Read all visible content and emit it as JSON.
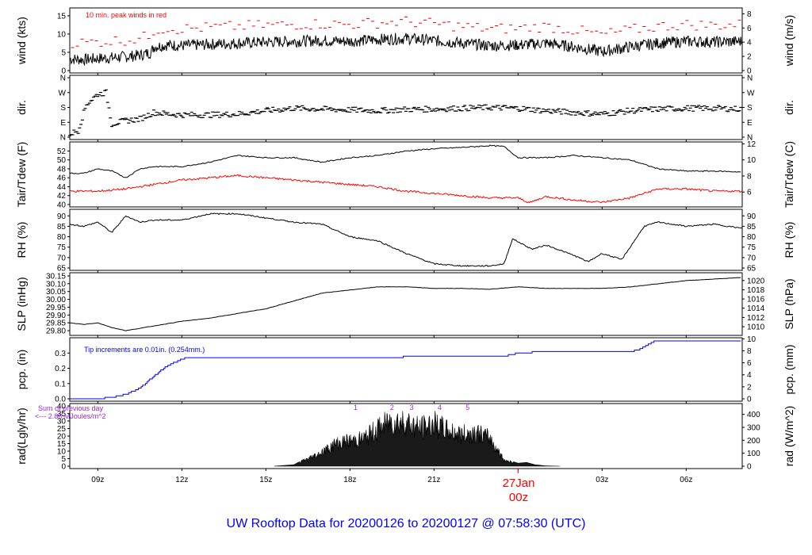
{
  "title": "UW Rooftop Data for 20200126  to  20200127 @ 07:58:30  (UTC)",
  "colors": {
    "frame": "#000000",
    "red": "#ff0000",
    "blue": "#0000ff",
    "purple": "#a020f0",
    "title": "#0000ff"
  },
  "x_axis": {
    "ticks": [
      "09z",
      "12z",
      "15z",
      "18z",
      "21z",
      "00z",
      "03z",
      "06z"
    ],
    "tick_hours": [
      9,
      12,
      15,
      18,
      21,
      24,
      27,
      30
    ],
    "range_hours": [
      8.0,
      32.0
    ],
    "date_label": "27Jan",
    "date_sub": "00z"
  },
  "panels": {
    "wind": {
      "ylabel_left": "wind (kts)",
      "ylabel_right": "wind (m/s)",
      "left_ticks": [
        "0",
        "5",
        "10",
        "15"
      ],
      "left_range": [
        0,
        16.5
      ],
      "right_ticks": [
        "0",
        "2",
        "4",
        "6",
        "8"
      ],
      "note": "10 min. peak winds in red",
      "series": [
        {
          "name": "wind",
          "color": "black",
          "points": [
            [
              8.0,
              3.2
            ],
            [
              8.5,
              3.0
            ],
            [
              9.0,
              3.3
            ],
            [
              9.5,
              3.5
            ],
            [
              10.0,
              3.8
            ],
            [
              10.5,
              4.2
            ],
            [
              10.9,
              5.0
            ],
            [
              11.0,
              6.5
            ],
            [
              11.5,
              7.0
            ],
            [
              12.0,
              6.8
            ],
            [
              13.0,
              7.2
            ],
            [
              14.0,
              7.5
            ],
            [
              15.0,
              7.8
            ],
            [
              16.0,
              8.0
            ],
            [
              17.0,
              8.2
            ],
            [
              18.0,
              8.0
            ],
            [
              19.0,
              8.5
            ],
            [
              20.0,
              8.8
            ],
            [
              21.0,
              8.2
            ],
            [
              22.0,
              7.5
            ],
            [
              23.0,
              6.8
            ],
            [
              24.0,
              7.0
            ],
            [
              25.0,
              7.5
            ],
            [
              26.0,
              6.5
            ],
            [
              27.0,
              5.2
            ],
            [
              28.0,
              6.5
            ],
            [
              29.0,
              7.5
            ],
            [
              30.0,
              8.0
            ],
            [
              31.0,
              7.8
            ],
            [
              32.0,
              8.0
            ]
          ]
        }
      ],
      "peaks_approx": {
        "color": "red",
        "offset_kts": 4.0
      }
    },
    "direction": {
      "ylabel_left": "dir.",
      "ylabel_right": "dir.",
      "ticks": [
        "N",
        "E",
        "S",
        "W",
        "N"
      ],
      "range_deg": [
        0,
        360
      ],
      "series": [
        {
          "name": "direction",
          "color": "black",
          "points": [
            [
              8.0,
              20
            ],
            [
              8.3,
              40
            ],
            [
              8.6,
              200
            ],
            [
              9.0,
              260
            ],
            [
              9.3,
              270
            ],
            [
              9.5,
              80
            ],
            [
              10.0,
              100
            ],
            [
              10.5,
              110
            ],
            [
              11.0,
              150
            ],
            [
              11.5,
              140
            ],
            [
              12.0,
              135
            ],
            [
              13.0,
              135
            ],
            [
              14.0,
              140
            ],
            [
              15.0,
              160
            ],
            [
              16.0,
              175
            ],
            [
              17.0,
              170
            ],
            [
              18.0,
              165
            ],
            [
              19.0,
              160
            ],
            [
              20.0,
              168
            ],
            [
              21.0,
              170
            ],
            [
              22.0,
              175
            ],
            [
              23.0,
              180
            ],
            [
              24.0,
              175
            ],
            [
              25.0,
              160
            ],
            [
              26.0,
              150
            ],
            [
              27.0,
              140
            ],
            [
              28.0,
              160
            ],
            [
              29.0,
              170
            ],
            [
              30.0,
              175
            ],
            [
              31.0,
              175
            ],
            [
              32.0,
              170
            ]
          ]
        }
      ]
    },
    "temp": {
      "ylabel_left": "Tair/Tdew (F)",
      "ylabel_right": "Tair/Tdew (C)",
      "left_ticks": [
        "40",
        "42",
        "44",
        "46",
        "48",
        "50",
        "52"
      ],
      "left_range": [
        40,
        53.5
      ],
      "right_ticks": [
        "6",
        "8",
        "10",
        "12"
      ],
      "series": [
        {
          "name": "Tair",
          "color": "black",
          "points": [
            [
              8.0,
              47.0
            ],
            [
              8.5,
              47.0
            ],
            [
              9.0,
              48.0
            ],
            [
              9.5,
              47.5
            ],
            [
              10.0,
              46.0
            ],
            [
              10.5,
              48.0
            ],
            [
              11.0,
              48.5
            ],
            [
              12.0,
              48.5
            ],
            [
              13.0,
              49.5
            ],
            [
              14.0,
              51.0
            ],
            [
              15.0,
              50.5
            ],
            [
              16.0,
              50.5
            ],
            [
              17.0,
              49.5
            ],
            [
              18.0,
              50.5
            ],
            [
              19.0,
              51.0
            ],
            [
              20.0,
              52.0
            ],
            [
              21.0,
              52.5
            ],
            [
              22.0,
              52.8
            ],
            [
              23.0,
              53.2
            ],
            [
              23.5,
              53.0
            ],
            [
              24.0,
              50.5
            ],
            [
              25.0,
              50.5
            ],
            [
              26.0,
              51.0
            ],
            [
              27.0,
              50.5
            ],
            [
              28.0,
              50.0
            ],
            [
              29.0,
              48.0
            ],
            [
              30.0,
              47.5
            ],
            [
              31.0,
              47.5
            ],
            [
              32.0,
              47.3
            ]
          ]
        },
        {
          "name": "Tdew",
          "color": "red",
          "points": [
            [
              8.0,
              43.0
            ],
            [
              9.0,
              43.0
            ],
            [
              10.0,
              43.5
            ],
            [
              11.0,
              44.5
            ],
            [
              12.0,
              45.5
            ],
            [
              13.0,
              46.0
            ],
            [
              14.0,
              46.5
            ],
            [
              15.0,
              46.0
            ],
            [
              16.0,
              45.5
            ],
            [
              17.0,
              45.0
            ],
            [
              18.0,
              44.5
            ],
            [
              19.0,
              44.0
            ],
            [
              20.0,
              43.0
            ],
            [
              21.0,
              42.5
            ],
            [
              22.0,
              42.0
            ],
            [
              23.0,
              41.5
            ],
            [
              24.0,
              41.5
            ],
            [
              24.4,
              40.4
            ],
            [
              25.0,
              41.8
            ],
            [
              26.0,
              41.0
            ],
            [
              27.0,
              40.5
            ],
            [
              28.0,
              41.5
            ],
            [
              29.0,
              43.5
            ],
            [
              30.0,
              43.5
            ],
            [
              31.0,
              43.0
            ],
            [
              32.0,
              43.0
            ]
          ]
        }
      ]
    },
    "rh": {
      "ylabel_left": "RH (%)",
      "ylabel_right": "RH (%)",
      "ticks": [
        "65",
        "70",
        "75",
        "80",
        "85",
        "90"
      ],
      "range": [
        65,
        92
      ],
      "series": [
        {
          "name": "RH",
          "color": "black",
          "points": [
            [
              8.0,
              86
            ],
            [
              8.5,
              85
            ],
            [
              9.0,
              87
            ],
            [
              9.5,
              82
            ],
            [
              10.0,
              90
            ],
            [
              10.5,
              87
            ],
            [
              11.0,
              88
            ],
            [
              12.0,
              88
            ],
            [
              13.0,
              91
            ],
            [
              14.0,
              91
            ],
            [
              15.0,
              89
            ],
            [
              16.0,
              87
            ],
            [
              17.0,
              86
            ],
            [
              18.0,
              80
            ],
            [
              19.0,
              78
            ],
            [
              20.0,
              72
            ],
            [
              21.0,
              67
            ],
            [
              22.0,
              66
            ],
            [
              23.0,
              66
            ],
            [
              23.5,
              67
            ],
            [
              23.8,
              79
            ],
            [
              24.5,
              74
            ],
            [
              25.0,
              76
            ],
            [
              26.0,
              71
            ],
            [
              26.5,
              68
            ],
            [
              27.0,
              72
            ],
            [
              27.7,
              69
            ],
            [
              28.0,
              75
            ],
            [
              28.5,
              85
            ],
            [
              29.0,
              87
            ],
            [
              30.0,
              85
            ],
            [
              31.0,
              86
            ],
            [
              32.0,
              84
            ]
          ]
        }
      ]
    },
    "slp": {
      "ylabel_left": "SLP (inHg)",
      "ylabel_right": "SLP (hPa)",
      "left_ticks": [
        "29.80",
        "29.85",
        "29.90",
        "29.95",
        "30.00",
        "30.05",
        "30.10",
        "30.15"
      ],
      "left_range": [
        29.785,
        30.155
      ],
      "right_ticks": [
        "1010",
        "1012",
        "1014",
        "1016",
        "1018",
        "1020"
      ],
      "series": [
        {
          "name": "SLP",
          "color": "black",
          "points": [
            [
              8.0,
              29.85
            ],
            [
              8.5,
              29.84
            ],
            [
              9.0,
              29.85
            ],
            [
              9.5,
              29.82
            ],
            [
              10.0,
              29.8
            ],
            [
              11.0,
              29.83
            ],
            [
              12.0,
              29.86
            ],
            [
              13.0,
              29.88
            ],
            [
              14.0,
              29.91
            ],
            [
              15.0,
              29.94
            ],
            [
              16.0,
              29.99
            ],
            [
              17.0,
              30.04
            ],
            [
              18.0,
              30.06
            ],
            [
              19.0,
              30.08
            ],
            [
              20.0,
              30.08
            ],
            [
              21.0,
              30.07
            ],
            [
              22.0,
              30.07
            ],
            [
              23.0,
              30.065
            ],
            [
              24.0,
              30.08
            ],
            [
              25.0,
              30.07
            ],
            [
              26.0,
              30.07
            ],
            [
              27.0,
              30.07
            ],
            [
              28.0,
              30.08
            ],
            [
              29.0,
              30.1
            ],
            [
              30.0,
              30.12
            ],
            [
              31.0,
              30.13
            ],
            [
              32.0,
              30.14
            ]
          ]
        }
      ]
    },
    "pcp": {
      "ylabel_left": "pcp. (in)",
      "ylabel_right": "pcp. (mm)",
      "left_ticks": [
        "0.0",
        "0.1",
        "0.2",
        "0.3"
      ],
      "left_range": [
        0,
        0.385
      ],
      "right_ticks": [
        "0",
        "2",
        "4",
        "6",
        "8",
        "10"
      ],
      "note": "Tip increments are 0.01in. (0.254mm.)",
      "series": [
        {
          "name": "precip",
          "color": "blue",
          "points": [
            [
              8.0,
              0.0
            ],
            [
              9.0,
              0.0
            ],
            [
              9.5,
              0.01
            ],
            [
              10.0,
              0.03
            ],
            [
              10.5,
              0.07
            ],
            [
              11.0,
              0.15
            ],
            [
              11.5,
              0.22
            ],
            [
              12.0,
              0.26
            ],
            [
              12.2,
              0.27
            ],
            [
              13.0,
              0.27
            ],
            [
              16.0,
              0.27
            ],
            [
              18.0,
              0.27
            ],
            [
              19.8,
              0.27
            ],
            [
              20.0,
              0.28
            ],
            [
              23.5,
              0.28
            ],
            [
              24.0,
              0.3
            ],
            [
              25.0,
              0.31
            ],
            [
              28.0,
              0.31
            ],
            [
              28.3,
              0.32
            ],
            [
              28.9,
              0.38
            ],
            [
              32.0,
              0.38
            ]
          ]
        }
      ]
    },
    "rad": {
      "ylabel_left": "rad(Lgly/hr)",
      "ylabel_right": "rad (W/m^2)",
      "left_ticks": [
        "0",
        "5",
        "10",
        "15",
        "20",
        "25",
        "30",
        "35",
        "40"
      ],
      "left_range": [
        0,
        40
      ],
      "right_ticks": [
        "0",
        "100",
        "200",
        "300",
        "400"
      ],
      "note_line1": "Sum of previous day",
      "note_line2": "<--- 2.88 MJoules/m^2",
      "hour_marks": [
        "1",
        "2",
        "3",
        "4",
        "5"
      ],
      "hour_mark_hours": [
        18.2,
        19.5,
        20.2,
        21.2,
        22.2
      ],
      "series": [
        {
          "name": "radiation",
          "color": "black",
          "points": [
            [
              15.3,
              0.0
            ],
            [
              16.0,
              1.0
            ],
            [
              16.5,
              6.0
            ],
            [
              17.0,
              11.0
            ],
            [
              17.5,
              18.0
            ],
            [
              18.0,
              20.0
            ],
            [
              18.5,
              22.0
            ],
            [
              19.0,
              30.0
            ],
            [
              19.5,
              36.0
            ],
            [
              20.0,
              35.0
            ],
            [
              20.5,
              30.0
            ],
            [
              21.0,
              34.0
            ],
            [
              21.5,
              28.0
            ],
            [
              22.0,
              25.0
            ],
            [
              22.5,
              27.0
            ],
            [
              23.0,
              22.0
            ],
            [
              23.5,
              5.0
            ],
            [
              24.0,
              2.0
            ],
            [
              24.3,
              2.5
            ],
            [
              24.6,
              1.0
            ],
            [
              25.0,
              0.2
            ],
            [
              25.5,
              0.0
            ]
          ]
        }
      ]
    }
  }
}
